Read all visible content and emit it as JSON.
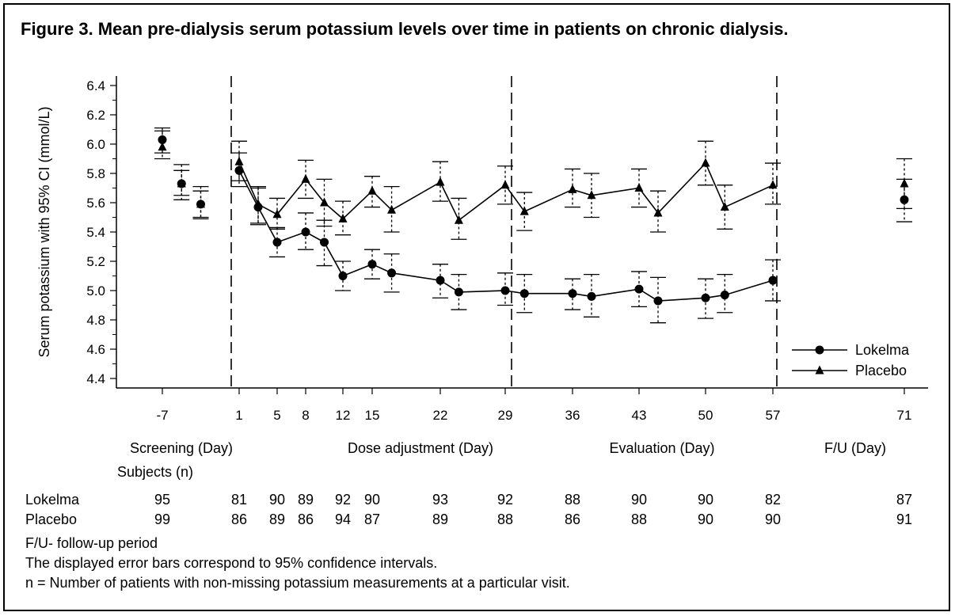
{
  "title": "Figure 3. Mean pre-dialysis serum potassium levels over time in patients on chronic dialysis.",
  "chart_data": {
    "type": "line",
    "title": "Figure 3. Mean pre-dialysis serum potassium levels over time in patients on chronic dialysis.",
    "ylabel": "Serum potassium with 95% CI (mmol/L)",
    "ylim": [
      4.4,
      6.4
    ],
    "yticks": [
      "4.4",
      "4.6",
      "4.8",
      "5.0",
      "5.2",
      "5.4",
      "5.6",
      "5.8",
      "6.0",
      "6.2",
      "6.4"
    ],
    "xtick_labels": [
      "-7",
      "1",
      "5",
      "8",
      "12",
      "15",
      "22",
      "29",
      "36",
      "43",
      "50",
      "57",
      "71"
    ],
    "phases": [
      "Screening (Day)",
      "Dose adjustment (Day)",
      "Evaluation (Day)",
      "F/U (Day)"
    ],
    "legend_position": "lower-right",
    "grid": false,
    "series": [
      {
        "name": "Lokelma",
        "marker": "circle",
        "points": [
          {
            "x": -7,
            "y": 6.03,
            "lo": 5.94,
            "hi": 6.11,
            "connected": false
          },
          {
            "x": -5,
            "y": 5.73,
            "lo": 5.65,
            "hi": 5.82,
            "connected": false
          },
          {
            "x": -3,
            "y": 5.59,
            "lo": 5.5,
            "hi": 5.68,
            "connected": false
          },
          {
            "x": 1,
            "y": 5.82,
            "lo": 5.71,
            "hi": 5.94,
            "connected": true
          },
          {
            "x": 3,
            "y": 5.57,
            "lo": 5.45,
            "hi": 5.7,
            "connected": true
          },
          {
            "x": 5,
            "y": 5.33,
            "lo": 5.23,
            "hi": 5.43,
            "connected": true
          },
          {
            "x": 8,
            "y": 5.4,
            "lo": 5.28,
            "hi": 5.53,
            "connected": true
          },
          {
            "x": 10,
            "y": 5.33,
            "lo": 5.17,
            "hi": 5.48,
            "connected": true
          },
          {
            "x": 12,
            "y": 5.1,
            "lo": 5.0,
            "hi": 5.2,
            "connected": true
          },
          {
            "x": 15,
            "y": 5.18,
            "lo": 5.08,
            "hi": 5.28,
            "connected": true
          },
          {
            "x": 17,
            "y": 5.12,
            "lo": 4.99,
            "hi": 5.25,
            "connected": true
          },
          {
            "x": 22,
            "y": 5.07,
            "lo": 4.95,
            "hi": 5.18,
            "connected": true
          },
          {
            "x": 24,
            "y": 4.99,
            "lo": 4.87,
            "hi": 5.11,
            "connected": true
          },
          {
            "x": 29,
            "y": 5.0,
            "lo": 4.9,
            "hi": 5.12,
            "connected": true
          },
          {
            "x": 31,
            "y": 4.98,
            "lo": 4.85,
            "hi": 5.11,
            "connected": true
          },
          {
            "x": 36,
            "y": 4.98,
            "lo": 4.87,
            "hi": 5.08,
            "connected": true
          },
          {
            "x": 38,
            "y": 4.96,
            "lo": 4.82,
            "hi": 5.11,
            "connected": true
          },
          {
            "x": 43,
            "y": 5.01,
            "lo": 4.89,
            "hi": 5.13,
            "connected": true
          },
          {
            "x": 45,
            "y": 4.93,
            "lo": 4.78,
            "hi": 5.09,
            "connected": true
          },
          {
            "x": 50,
            "y": 4.95,
            "lo": 4.81,
            "hi": 5.08,
            "connected": true
          },
          {
            "x": 52,
            "y": 4.97,
            "lo": 4.85,
            "hi": 5.11,
            "connected": true
          },
          {
            "x": 57,
            "y": 5.07,
            "lo": 4.93,
            "hi": 5.21,
            "connected": true
          },
          {
            "x": 71,
            "y": 5.62,
            "lo": 5.47,
            "hi": 5.76,
            "connected": false
          }
        ]
      },
      {
        "name": "Placebo",
        "marker": "triangle",
        "points": [
          {
            "x": -7,
            "y": 5.98,
            "lo": 5.9,
            "hi": 6.09,
            "connected": false
          },
          {
            "x": -5,
            "y": 5.73,
            "lo": 5.62,
            "hi": 5.86,
            "connected": false
          },
          {
            "x": -3,
            "y": 5.59,
            "lo": 5.49,
            "hi": 5.71,
            "connected": false
          },
          {
            "x": 1,
            "y": 5.88,
            "lo": 5.75,
            "hi": 6.02,
            "connected": true
          },
          {
            "x": 3,
            "y": 5.59,
            "lo": 5.46,
            "hi": 5.71,
            "connected": true
          },
          {
            "x": 5,
            "y": 5.52,
            "lo": 5.42,
            "hi": 5.63,
            "connected": true
          },
          {
            "x": 8,
            "y": 5.76,
            "lo": 5.63,
            "hi": 5.89,
            "connected": true
          },
          {
            "x": 10,
            "y": 5.6,
            "lo": 5.44,
            "hi": 5.76,
            "connected": true
          },
          {
            "x": 12,
            "y": 5.49,
            "lo": 5.38,
            "hi": 5.61,
            "connected": true
          },
          {
            "x": 15,
            "y": 5.68,
            "lo": 5.57,
            "hi": 5.78,
            "connected": true
          },
          {
            "x": 17,
            "y": 5.55,
            "lo": 5.4,
            "hi": 5.71,
            "connected": true
          },
          {
            "x": 22,
            "y": 5.74,
            "lo": 5.61,
            "hi": 5.88,
            "connected": true
          },
          {
            "x": 24,
            "y": 5.48,
            "lo": 5.35,
            "hi": 5.63,
            "connected": true
          },
          {
            "x": 29,
            "y": 5.72,
            "lo": 5.59,
            "hi": 5.85,
            "connected": true
          },
          {
            "x": 31,
            "y": 5.54,
            "lo": 5.41,
            "hi": 5.67,
            "connected": true
          },
          {
            "x": 36,
            "y": 5.69,
            "lo": 5.57,
            "hi": 5.83,
            "connected": true
          },
          {
            "x": 38,
            "y": 5.65,
            "lo": 5.5,
            "hi": 5.8,
            "connected": true
          },
          {
            "x": 43,
            "y": 5.7,
            "lo": 5.57,
            "hi": 5.83,
            "connected": true
          },
          {
            "x": 45,
            "y": 5.53,
            "lo": 5.4,
            "hi": 5.68,
            "connected": true
          },
          {
            "x": 50,
            "y": 5.87,
            "lo": 5.72,
            "hi": 6.02,
            "connected": true
          },
          {
            "x": 52,
            "y": 5.57,
            "lo": 5.42,
            "hi": 5.72,
            "connected": true
          },
          {
            "x": 57,
            "y": 5.72,
            "lo": 5.59,
            "hi": 5.87,
            "connected": true
          },
          {
            "x": 71,
            "y": 5.73,
            "lo": 5.56,
            "hi": 5.9,
            "connected": false
          }
        ]
      }
    ]
  },
  "subjects": {
    "header": "Subjects (n)",
    "lokelma_label": "Lokelma",
    "placebo_label": "Placebo",
    "lokelma": [
      "95",
      "81",
      "90",
      "89",
      "92",
      "90",
      "93",
      "92",
      "88",
      "90",
      "90",
      "82",
      "87"
    ],
    "placebo": [
      "99",
      "86",
      "89",
      "86",
      "94",
      "87",
      "89",
      "88",
      "86",
      "88",
      "90",
      "90",
      "91"
    ]
  },
  "footnotes": {
    "line1": "F/U- follow-up period",
    "line2": "The displayed error bars correspond to 95% confidence intervals.",
    "line3": "n = Number of patients with non-missing potassium measurements at a particular visit."
  }
}
